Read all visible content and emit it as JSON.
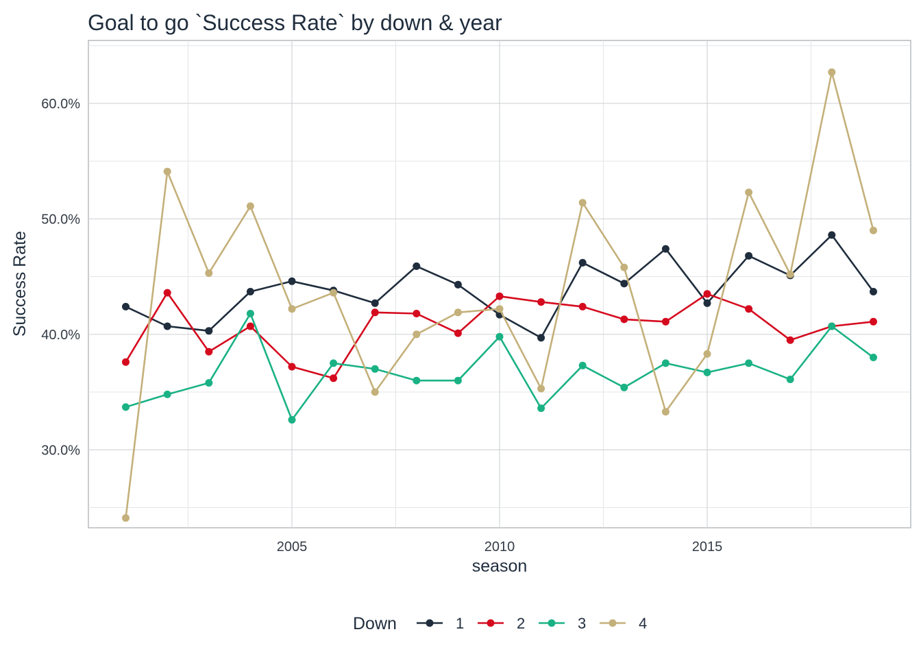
{
  "chart_data": {
    "type": "line",
    "title": "Goal to go `Success Rate` by down & year",
    "xlabel": "season",
    "ylabel": "Success Rate",
    "x": [
      2001,
      2002,
      2003,
      2004,
      2005,
      2006,
      2007,
      2008,
      2009,
      2010,
      2011,
      2012,
      2013,
      2014,
      2015,
      2016,
      2017,
      2018,
      2019
    ],
    "x_ticks": [
      2005,
      2010,
      2015
    ],
    "x_tick_labels": [
      "2005",
      "2010",
      "2015"
    ],
    "y_ticks": [
      0.3,
      0.4,
      0.5,
      0.6
    ],
    "y_tick_labels": [
      "30.0%",
      "40.0%",
      "50.0%",
      "60.0%"
    ],
    "xlim": [
      2000.1,
      2019.9
    ],
    "ylim": [
      0.2325,
      0.6545
    ],
    "grid": true,
    "legend": {
      "title": "Down",
      "position": "bottom"
    },
    "series": [
      {
        "name": "1",
        "color": "#1f2d3d",
        "values": [
          0.424,
          0.407,
          0.403,
          0.437,
          0.446,
          0.438,
          0.427,
          0.459,
          0.443,
          0.417,
          0.397,
          0.462,
          0.444,
          0.474,
          0.427,
          0.468,
          0.451,
          0.486,
          0.437
        ]
      },
      {
        "name": "2",
        "color": "#d50a1e",
        "values": [
          0.376,
          0.436,
          0.385,
          0.407,
          0.372,
          0.362,
          0.419,
          0.418,
          0.401,
          0.433,
          0.428,
          0.424,
          0.413,
          0.411,
          0.435,
          0.422,
          0.395,
          0.407,
          0.411
        ]
      },
      {
        "name": "3",
        "color": "#1ab285",
        "values": [
          0.337,
          0.348,
          0.358,
          0.418,
          0.326,
          0.375,
          0.37,
          0.36,
          0.36,
          0.398,
          0.336,
          0.373,
          0.354,
          0.375,
          0.367,
          0.375,
          0.361,
          0.407,
          0.38
        ]
      },
      {
        "name": "4",
        "color": "#c4b07a",
        "values": [
          0.241,
          0.541,
          0.453,
          0.511,
          0.422,
          0.436,
          0.35,
          0.4,
          0.419,
          0.422,
          0.353,
          0.514,
          0.458,
          0.333,
          0.383,
          0.523,
          0.452,
          0.627,
          0.49
        ]
      }
    ]
  }
}
